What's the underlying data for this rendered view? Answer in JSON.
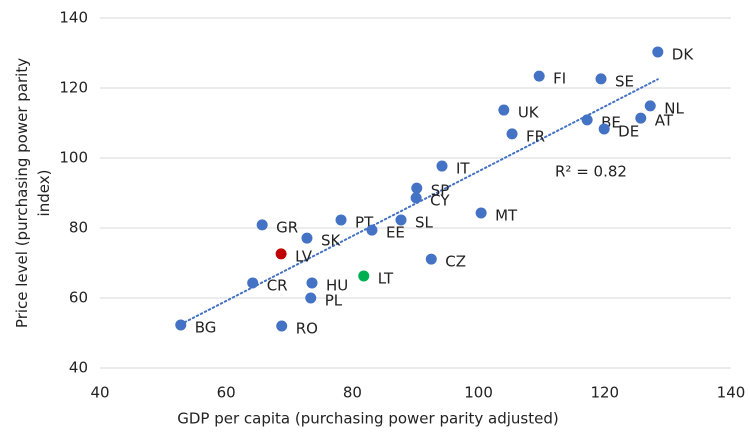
{
  "chart_data": {
    "type": "scatter",
    "xlabel": "GDP per capita (purchasing power parity adjusted)",
    "ylabel": "Price level (purchasing power parity index)",
    "labels": [
      "DK",
      "FI",
      "SE",
      "NL",
      "UK",
      "BE",
      "AT",
      "DE",
      "FR",
      "IT",
      "SP",
      "CY",
      "MT",
      "PT",
      "SL",
      "GR",
      "EE",
      "SK",
      "LV",
      "CZ",
      "LT",
      "CR",
      "HU",
      "PL",
      "BG",
      "RO"
    ],
    "x": [
      128.4,
      109.6,
      119.4,
      127.2,
      104.0,
      117.2,
      125.7,
      119.9,
      105.3,
      94.2,
      90.2,
      90.1,
      100.4,
      78.2,
      87.7,
      65.7,
      83.1,
      72.8,
      68.7,
      92.5,
      81.8,
      64.2,
      73.6,
      73.4,
      52.8,
      68.8
    ],
    "y": [
      130.3,
      123.4,
      122.6,
      114.9,
      113.7,
      110.9,
      111.4,
      108.3,
      106.9,
      97.7,
      91.4,
      88.6,
      84.3,
      82.3,
      82.3,
      80.9,
      79.4,
      77.1,
      72.6,
      71.1,
      66.3,
      64.3,
      64.3,
      60.0,
      52.3,
      52.0
    ],
    "color": "#4472c4",
    "point_colors": [
      "#4472c4",
      "#4472c4",
      "#4472c4",
      "#4472c4",
      "#4472c4",
      "#4472c4",
      "#4472c4",
      "#4472c4",
      "#4472c4",
      "#4472c4",
      "#4472c4",
      "#4472c4",
      "#4472c4",
      "#4472c4",
      "#4472c4",
      "#4472c4",
      "#4472c4",
      "#4472c4",
      "#c00000",
      "#4472c4",
      "#00b050",
      "#4472c4",
      "#4472c4",
      "#4472c4",
      "#4472c4",
      "#4472c4"
    ],
    "trendline": {
      "x": [
        52.8,
        128.4
      ],
      "y": [
        52.5,
        122.5
      ]
    },
    "annotation": "R² = 0.82",
    "xlim": [
      40,
      140
    ],
    "xticks": [
      40,
      60,
      80,
      100,
      120,
      140
    ],
    "ylim": [
      40,
      140
    ],
    "yticks": [
      40,
      60,
      80,
      100,
      120,
      140
    ],
    "grid": true
  }
}
